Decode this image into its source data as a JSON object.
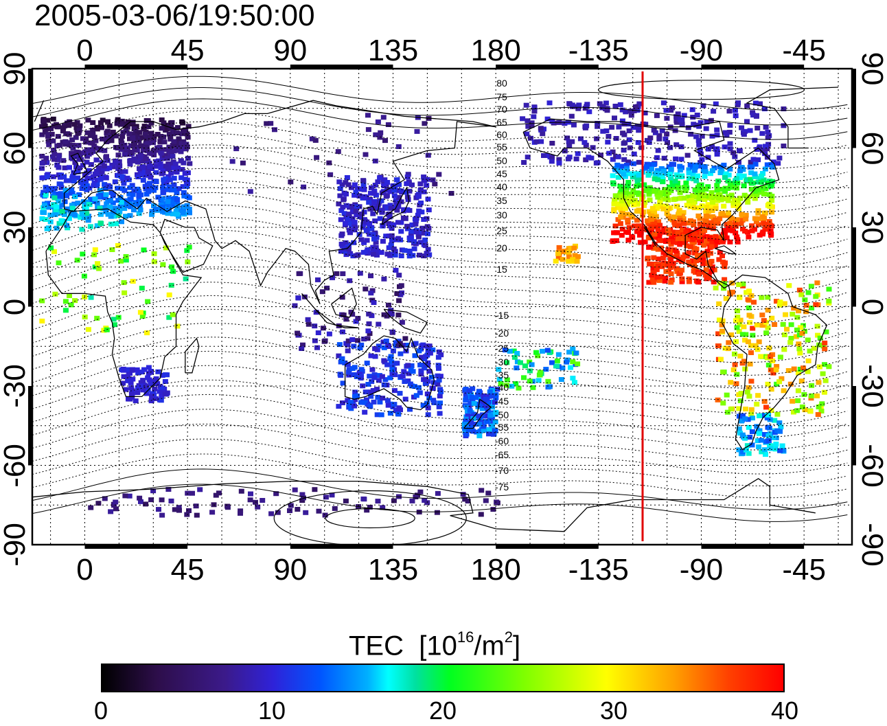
{
  "timestamp": "2005-03-06/19:50:00",
  "axes": {
    "lon_ticks": [
      "0",
      "45",
      "90",
      "135",
      "180",
      "-135",
      "-90",
      "-45"
    ],
    "lat_ticks": [
      "90",
      "60",
      "30",
      "0",
      "-30",
      "-60",
      "-90"
    ],
    "lon_range": [
      -23,
      336
    ],
    "lat_range": [
      -90,
      90
    ]
  },
  "contour_labels": {
    "north": [
      "80",
      "75",
      "70",
      "65",
      "60",
      "55",
      "50",
      "45",
      "40",
      "35",
      "30",
      "25",
      "20",
      "15"
    ],
    "south": [
      "-15",
      "-20",
      "-25",
      "-30",
      "-35",
      "-40",
      "-45",
      "-50",
      "-55",
      "-60",
      "-65",
      "-70",
      "-75"
    ]
  },
  "local_noon_line": {
    "longitude": -117.5,
    "color": "#e00000"
  },
  "colorbar": {
    "title_main": "TEC",
    "title_unit_prefix": "[10",
    "title_unit_exp": "16",
    "title_unit_mid": "/m",
    "title_unit_exp2": "2",
    "title_unit_suffix": "]",
    "ticks": [
      "0",
      "10",
      "20",
      "30",
      "40"
    ],
    "min": 0,
    "max": 40
  },
  "colors": {
    "frame": "#000000",
    "grid": "#000000",
    "coast": "#000000"
  }
}
